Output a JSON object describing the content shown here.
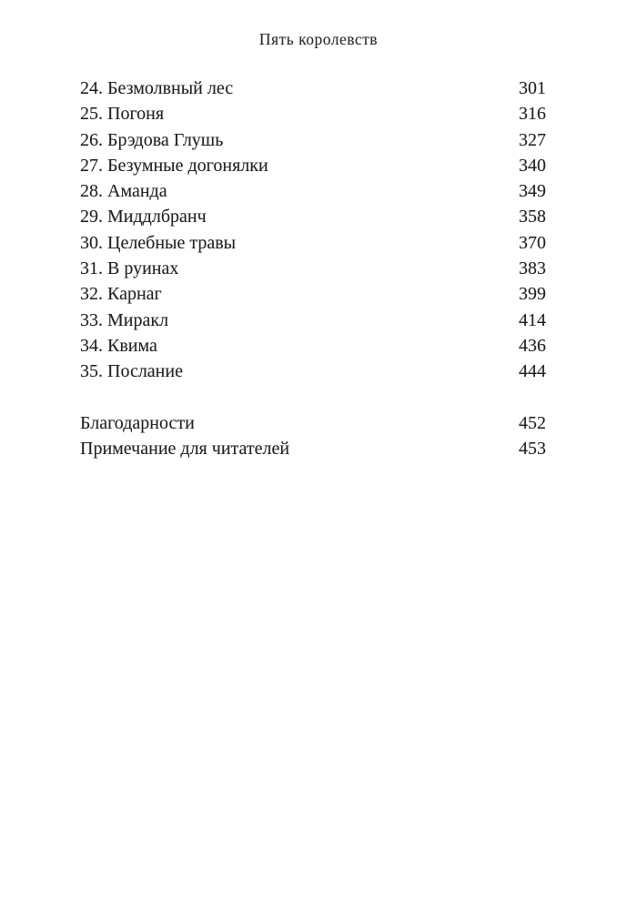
{
  "page_header": {
    "title": "Пять королевств"
  },
  "toc": {
    "entries": [
      {
        "label": "24. Безмолвный лес",
        "page": "301"
      },
      {
        "label": "25. Погоня",
        "page": "316"
      },
      {
        "label": "26. Брэдова Глушь",
        "page": "327"
      },
      {
        "label": "27. Безумные догонялки",
        "page": "340"
      },
      {
        "label": "28. Аманда",
        "page": "349"
      },
      {
        "label": "29. Миддлбранч",
        "page": "358"
      },
      {
        "label": "30. Целебные травы",
        "page": "370"
      },
      {
        "label": "31. В руинах",
        "page": "383"
      },
      {
        "label": "32. Карнаг",
        "page": "399"
      },
      {
        "label": "33. Миракл",
        "page": "414"
      },
      {
        "label": "34. Квима",
        "page": "436"
      },
      {
        "label": "35. Послание",
        "page": "444"
      }
    ],
    "back_matter": [
      {
        "label": "Благодарности",
        "page": "452"
      },
      {
        "label": "Примечание для читателей",
        "page": "453"
      }
    ]
  },
  "colors": {
    "background": "#ffffff",
    "text": "#222222"
  }
}
